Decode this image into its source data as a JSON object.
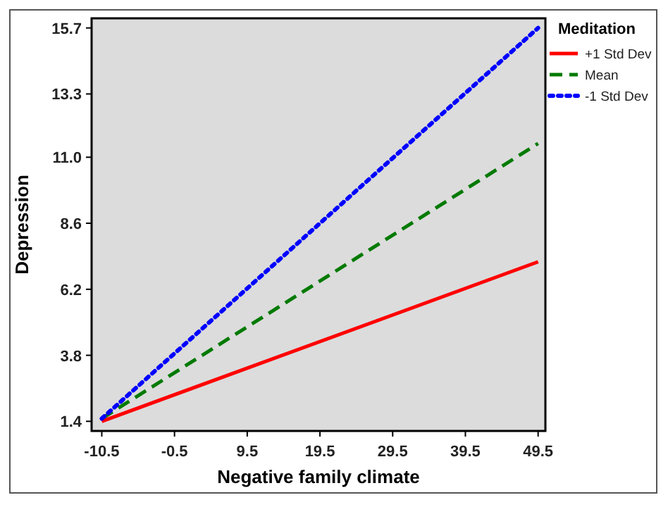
{
  "chart_data": {
    "type": "line",
    "xlabel": "Negative family climate",
    "ylabel": "Depression",
    "legend_title": "Meditation",
    "x": [
      -10.5,
      49.5
    ],
    "series": [
      {
        "name": "+1 Std Dev",
        "color": "#ff0000",
        "values": [
          1.4,
          7.2
        ],
        "line_style": "solid"
      },
      {
        "name": "Mean",
        "color": "#007a00",
        "values": [
          1.5,
          11.5
        ],
        "line_style": "dashed"
      },
      {
        "name": "-1 Std Dev",
        "color": "#0000ff",
        "values": [
          1.5,
          15.7
        ],
        "line_style": "dotted"
      }
    ],
    "xlim": [
      -11.9,
      50.5
    ],
    "ylim": [
      1.05,
      16.05
    ],
    "xticks": [
      -10.5,
      -0.5,
      9.5,
      19.5,
      29.5,
      39.5,
      49.5
    ],
    "yticks": [
      1.4,
      3.8,
      6.2,
      8.6,
      {
        "value": 11.0,
        "label": "11.0"
      },
      13.3,
      15.7
    ],
    "grid": false,
    "legend": "top right",
    "marker": "none"
  }
}
